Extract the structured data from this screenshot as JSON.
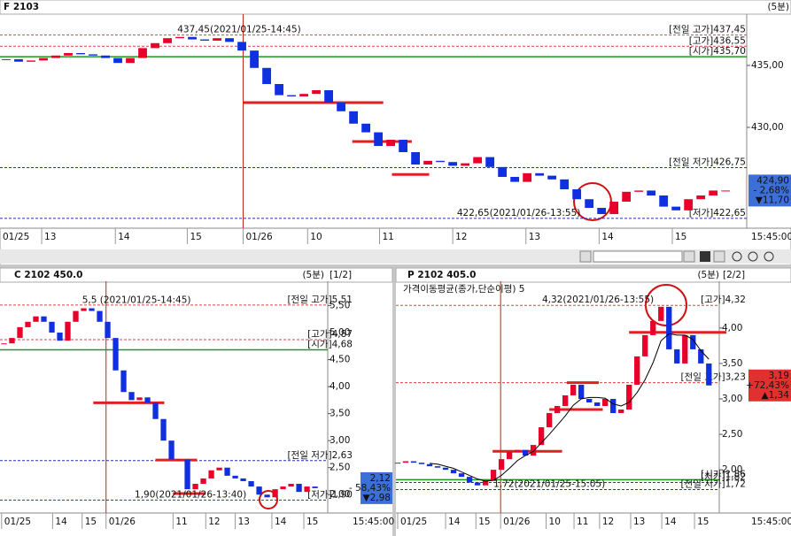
{
  "chart_data": [
    {
      "type": "candlestick",
      "title": "F 2103",
      "timeframe": "(5분)",
      "clock": "15:45:00",
      "up_color": "#e8002a",
      "down_color": "#1030e0",
      "xlim": [
        -0.5,
        59.7
      ],
      "xticks": [
        {
          "value": -0.5,
          "label": "01/25"
        },
        {
          "value": 2.86,
          "label": "13"
        },
        {
          "value": 8.8,
          "label": "14"
        },
        {
          "value": 14.6,
          "label": "15"
        },
        {
          "value": 19.1,
          "label": "01/26"
        },
        {
          "value": 24.3,
          "label": "10"
        },
        {
          "value": 30.1,
          "label": "11"
        },
        {
          "value": 36,
          "label": "12"
        },
        {
          "value": 41.9,
          "label": "13"
        },
        {
          "value": 47.8,
          "label": "14"
        },
        {
          "value": 53.7,
          "label": "15"
        }
      ],
      "ylim": [
        421.86,
        439.14
      ],
      "yticks": [
        {
          "value": 430,
          "label": "430,00"
        },
        {
          "value": 435,
          "label": "435,00"
        }
      ],
      "values": [
        435.5,
        435.3,
        435.4,
        435.6,
        435.8,
        436.0,
        435.9,
        435.8,
        435.6,
        435.2,
        435.6,
        436.4,
        436.8,
        437.2,
        437.3,
        437.1,
        437.0,
        437.2,
        436.9,
        436.2,
        434.8,
        433.5,
        432.6,
        432.5,
        432.7,
        433.0,
        432.0,
        431.3,
        430.3,
        429.6,
        428.5,
        429.0,
        428.0,
        427.0,
        427.3,
        427.2,
        426.9,
        427.1,
        427.6,
        426.8,
        426.0,
        425.6,
        426.3,
        426.1,
        425.8,
        425.0,
        424.2,
        423.5,
        423.0,
        424.0,
        424.8,
        424.9,
        424.5,
        423.6,
        423.3,
        424.2,
        424.5,
        424.9,
        424.9
      ],
      "ref_lines": [
        {
          "label": "[전일 고가]437,45",
          "value": 437.45,
          "color": "#e04040",
          "dashed": true
        },
        {
          "label": "[고가]436,55",
          "value": 436.55,
          "color": "#e04040",
          "dashed": true
        },
        {
          "label": "[시가]435,70",
          "value": 435.7,
          "color": "#1a9a1a",
          "dashed": false
        },
        {
          "label": "[전일 저가]426,75",
          "value": 426.75,
          "color": "#2030c0",
          "dashed": true
        },
        {
          "label": "[저가]422,65",
          "value": 422.65,
          "color": "#2030c0",
          "dashed": true
        }
      ],
      "drawn_lines": [
        {
          "value": 432.0,
          "x": [
            19.1,
            30.4
          ]
        },
        {
          "value": 428.86,
          "x": [
            27.9,
            32.7
          ]
        },
        {
          "value": 426.2,
          "x": [
            31.1,
            34.1
          ]
        }
      ],
      "annotations": [
        {
          "label": "437,45(2021/01/25-14:45)",
          "value": 437.45,
          "x": 13.8
        },
        {
          "label": "422,65(2021/01/26-13:55)",
          "value": 422.65,
          "x": 46.3
        }
      ],
      "price_box": {
        "price": "424,90",
        "change": "- 2,68%",
        "delta": "▼11,70",
        "color": "#3d6fd8"
      }
    },
    {
      "type": "candlestick",
      "title": "C 2102 450.0",
      "timeframe": "(5분)",
      "page": "[1/2]",
      "clock": "15:45:00",
      "up_color": "#e8002a",
      "down_color": "#1030e0",
      "xlim": [
        -0.5,
        40.6
      ],
      "xticks": [
        {
          "value": -0.3,
          "label": "01/25"
        },
        {
          "value": 6.1,
          "label": "14"
        },
        {
          "value": 9.8,
          "label": "15"
        },
        {
          "value": 12.8,
          "label": "01/26"
        },
        {
          "value": 21.2,
          "label": "11"
        },
        {
          "value": 25.3,
          "label": "12"
        },
        {
          "value": 29,
          "label": "13"
        },
        {
          "value": 33.6,
          "label": "14"
        },
        {
          "value": 37.6,
          "label": "15"
        }
      ],
      "ylim": [
        1.66,
        5.95
      ],
      "yticks": [
        {
          "value": 2,
          "label": "2,00"
        },
        {
          "value": 2.5,
          "label": "2,50"
        },
        {
          "value": 3,
          "label": "3,00"
        },
        {
          "value": 3.5,
          "label": "3,50"
        },
        {
          "value": 4,
          "label": "4,00"
        },
        {
          "value": 4.5,
          "label": "4,50"
        },
        {
          "value": 5,
          "label": "5,00"
        },
        {
          "value": 5.5,
          "label": "5,50"
        }
      ],
      "values": [
        4.8,
        4.9,
        5.1,
        5.2,
        5.3,
        5.2,
        5.0,
        4.85,
        5.2,
        5.4,
        5.45,
        5.4,
        5.2,
        4.9,
        4.3,
        3.9,
        3.75,
        3.8,
        3.7,
        3.4,
        3.0,
        2.65,
        2.65,
        2.1,
        2.2,
        2.3,
        2.45,
        2.5,
        2.35,
        2.3,
        2.25,
        2.15,
        2.0,
        1.95,
        2.1,
        2.15,
        2.2,
        2.05,
        2.15,
        2.12
      ],
      "ref_lines": [
        {
          "label": "[전일 고가]5,51",
          "value": 5.51,
          "color": "#e04040",
          "dashed": true
        },
        {
          "label": "[고가]4,87",
          "value": 4.87,
          "color": "#e04040",
          "dashed": true
        },
        {
          "label": "[시가]4,68",
          "value": 4.68,
          "color": "#1a9a1a",
          "dashed": false
        },
        {
          "label": "[전일 저가]2,63",
          "value": 2.63,
          "color": "#2030c0",
          "dashed": true
        },
        {
          "label": "[저가]1,90",
          "value": 1.9,
          "color": "#2030c0",
          "dashed": true
        }
      ],
      "drawn_lines": [
        {
          "value": 3.7,
          "x": [
            11.2,
            20.1
          ]
        },
        {
          "value": 2.64,
          "x": [
            19,
            24.2
          ]
        },
        {
          "value": 2.02,
          "x": [
            21.2,
            25.3
          ]
        }
      ],
      "annotations": [
        {
          "label": "5,5 (2021/01/25-14:45)",
          "value": 5.5,
          "x": 9.8
        },
        {
          "label": "1,90(2021/01/26-13:40)",
          "value": 1.9,
          "x": 30.4
        }
      ],
      "price_box": {
        "price": "2,12",
        "change": "- 58,43%",
        "delta": "▼2,98",
        "color": "#3d6fd8"
      }
    },
    {
      "type": "candlestick",
      "title": "P 2102 405.0",
      "timeframe": "(5분)",
      "page": "[2/2]",
      "clock": "15:45:00",
      "up_color": "#e8002a",
      "down_color": "#1030e0",
      "xlim": [
        -0.22,
        40.3
      ],
      "xticks": [
        {
          "value": 0,
          "label": "01/25"
        },
        {
          "value": 6,
          "label": "14"
        },
        {
          "value": 9.8,
          "label": "15"
        },
        {
          "value": 12.9,
          "label": "01/26"
        },
        {
          "value": 18.6,
          "label": "10"
        },
        {
          "value": 22.1,
          "label": "11"
        },
        {
          "value": 25.3,
          "label": "12"
        },
        {
          "value": 29.2,
          "label": "13"
        },
        {
          "value": 33.1,
          "label": "14"
        },
        {
          "value": 37.2,
          "label": "15"
        }
      ],
      "ylim": [
        1.39,
        4.66
      ],
      "yticks": [
        {
          "value": 2,
          "label": "2,00"
        },
        {
          "value": 2.5,
          "label": "2,50"
        },
        {
          "value": 3,
          "label": "3,00"
        },
        {
          "value": 3.5,
          "label": "3,50"
        },
        {
          "value": 4,
          "label": "4,00"
        }
      ],
      "values": [
        2.1,
        2.12,
        2.1,
        2.08,
        2.05,
        2.03,
        2.0,
        1.95,
        1.9,
        1.82,
        1.78,
        1.85,
        2.0,
        2.15,
        2.25,
        2.28,
        2.2,
        2.35,
        2.6,
        2.8,
        2.9,
        3.05,
        3.2,
        3.0,
        2.95,
        2.9,
        3.0,
        2.8,
        2.85,
        3.2,
        3.6,
        3.9,
        4.1,
        4.3,
        3.7,
        3.5,
        3.9,
        3.7,
        3.5,
        3.19
      ],
      "ma": {
        "name": "가격이동평균(종가,단순이평) 5",
        "color": "#000000",
        "values": [
          null,
          null,
          null,
          null,
          2.09,
          2.08,
          2.05,
          2.02,
          1.97,
          1.92,
          1.87,
          1.84,
          1.85,
          1.92,
          2.02,
          2.13,
          2.2,
          2.26,
          2.38,
          2.5,
          2.63,
          2.76,
          2.91,
          3.0,
          3.02,
          3.02,
          3.01,
          2.93,
          2.9,
          2.95,
          3.09,
          3.27,
          3.51,
          3.82,
          3.92,
          3.9,
          3.9,
          3.84,
          3.68,
          3.56
        ]
      },
      "ref_lines": [
        {
          "label": "[고가]4,32",
          "value": 4.32,
          "color": "#e04040",
          "dashed": true
        },
        {
          "label": "[전일 고가]3,23",
          "value": 3.23,
          "color": "#e04040",
          "dashed": true
        },
        {
          "label": "[시가]1,86",
          "value": 1.86,
          "color": "#1a9a1a",
          "dashed": false
        },
        {
          "label": "[저가]1,82",
          "value": 1.82,
          "color": "#2030c0",
          "dashed": true
        },
        {
          "label": "[전일 저가]1,72",
          "value": 1.72,
          "color": "#2030c0",
          "dashed": true
        }
      ],
      "drawn_lines": [
        {
          "value": 2.26,
          "x": [
            11.9,
            20.6
          ]
        },
        {
          "value": 2.85,
          "x": [
            19,
            25.7
          ]
        },
        {
          "value": 3.23,
          "x": [
            21.2,
            25.2
          ]
        },
        {
          "value": 3.94,
          "x": [
            29,
            41.2
          ]
        }
      ],
      "annotations": [
        {
          "label": "4,32(2021/01/26-13:55)",
          "value": 4.32,
          "x": 32.1
        },
        {
          "label": "1,72(2021/01/25-15:05)",
          "value": 1.72,
          "x": 12
        }
      ],
      "price_box": {
        "price": "3,19",
        "change": "+72,43%",
        "delta": "▲1,34",
        "color": "#e03030"
      }
    }
  ]
}
